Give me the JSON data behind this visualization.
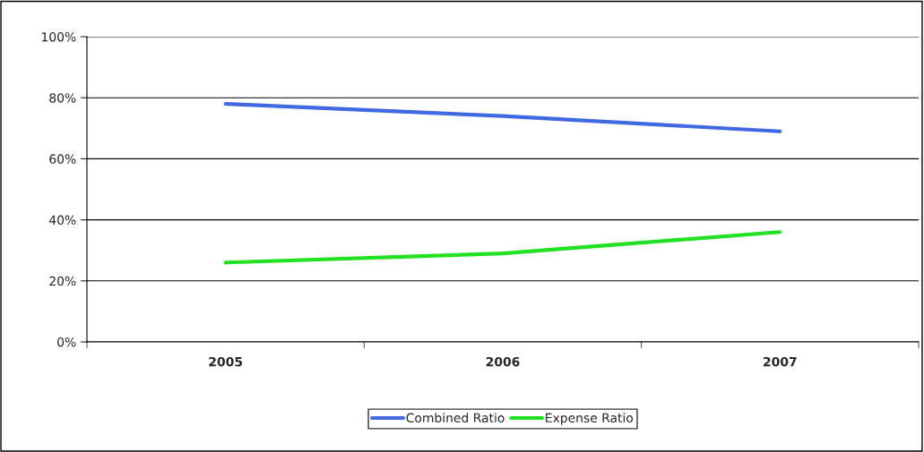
{
  "chart_data": {
    "type": "line",
    "categories": [
      "2005",
      "2006",
      "2007"
    ],
    "series": [
      {
        "name": "Combined Ratio",
        "color": "#4169e1",
        "values": [
          78,
          74,
          69
        ]
      },
      {
        "name": "Expense Ratio",
        "color": "#22e022",
        "values": [
          26,
          29,
          36
        ]
      }
    ],
    "ylim": [
      0,
      100
    ],
    "yticks": [
      {
        "value": 0,
        "label": "0%"
      },
      {
        "value": 20,
        "label": "20%"
      },
      {
        "value": 40,
        "label": "40%"
      },
      {
        "value": 60,
        "label": "60%"
      },
      {
        "value": 80,
        "label": "80%"
      },
      {
        "value": 100,
        "label": "100%"
      }
    ],
    "grid": "y",
    "legend": "bottom",
    "marker": "none",
    "line_style": "solid"
  }
}
